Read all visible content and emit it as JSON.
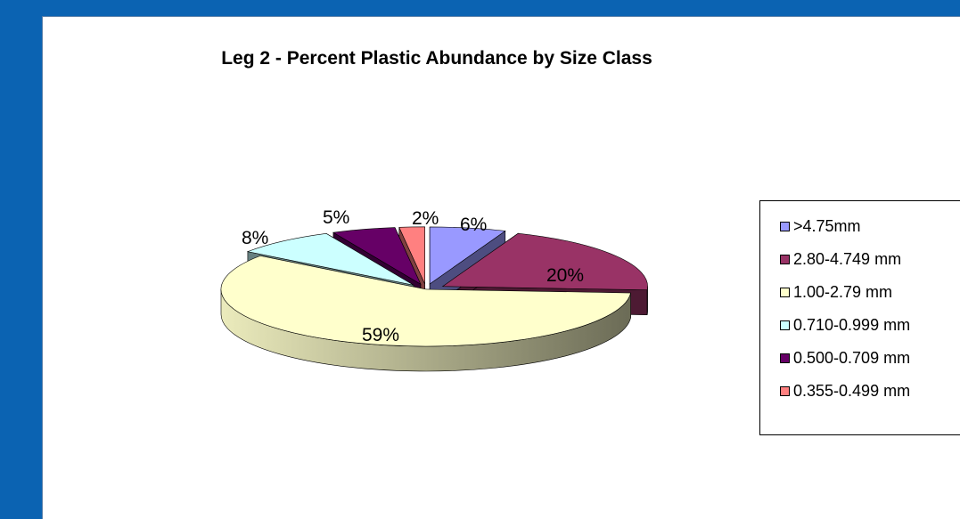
{
  "chart_data": {
    "type": "pie",
    "title": "Leg 2 - Percent Plastic Abundance by Size Class",
    "categories": [
      ">4.75mm",
      "2.80-4.749 mm",
      "1.00-2.79 mm",
      "0.710-0.999 mm",
      "0.500-0.709 mm",
      "0.355-0.499 mm"
    ],
    "values": [
      6,
      20,
      59,
      8,
      5,
      2
    ],
    "labels": [
      "6%",
      "20%",
      "59%",
      "8%",
      "5%",
      "2%"
    ],
    "colors": [
      "#9999ff",
      "#993366",
      "#ffffcc",
      "#ccffff",
      "#660066",
      "#ff8080"
    ],
    "exploded": true,
    "three_d": true,
    "legend_position": "right"
  }
}
